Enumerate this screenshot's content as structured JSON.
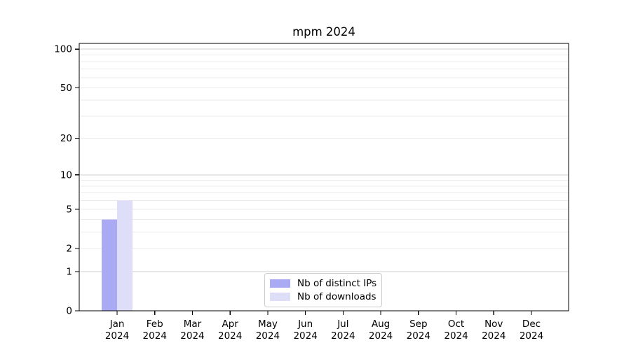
{
  "chart_data": {
    "type": "bar",
    "title": "mpm 2024",
    "categories": [
      "Jan",
      "Feb",
      "Mar",
      "Apr",
      "May",
      "Jun",
      "Jul",
      "Aug",
      "Sep",
      "Oct",
      "Nov",
      "Dec"
    ],
    "category_year": "2024",
    "series": [
      {
        "name": "Nb of distinct IPs",
        "color": "#a9a9f4",
        "values": [
          4,
          0,
          0,
          0,
          0,
          0,
          0,
          0,
          0,
          0,
          0,
          0
        ]
      },
      {
        "name": "Nb of downloads",
        "color": "#dedef9",
        "values": [
          6,
          0,
          0,
          0,
          0,
          0,
          0,
          0,
          0,
          0,
          0,
          0
        ]
      }
    ],
    "yscale": "log1p",
    "yticks": [
      0,
      1,
      2,
      5,
      10,
      20,
      50,
      100
    ],
    "minor_gridlines": [
      2,
      3,
      4,
      5,
      6,
      7,
      8,
      9,
      20,
      30,
      40,
      50,
      60,
      70,
      80,
      90
    ],
    "major_gridlines": [
      1,
      10,
      100
    ],
    "ylim": [
      0,
      110
    ],
    "xlabel": "",
    "ylabel": "",
    "grid": "horizontal",
    "legend_position": "lower center",
    "colors": {
      "spine": "#000000",
      "grid_minor": "#ebebeb",
      "grid_major": "#cfcfcf",
      "text": "#000000"
    }
  }
}
